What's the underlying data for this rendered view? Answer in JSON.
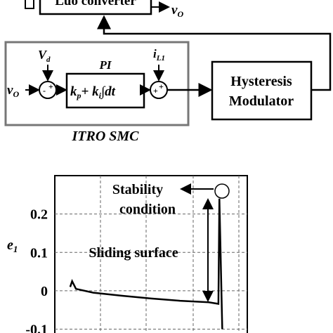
{
  "diagram": {
    "converter": "Luo converter",
    "output": {
      "symbol": "v",
      "sub": "O"
    },
    "input": {
      "symbol": "v",
      "sub": "O"
    },
    "reference": {
      "symbol": "V",
      "sub": "d"
    },
    "current": {
      "symbol": "i",
      "sub": "L1"
    },
    "pi_label": "PI",
    "pi_formula": {
      "kp": "k",
      "kp_sub": "p",
      "plus": "+ ",
      "ki": "k",
      "ki_sub": "i",
      "integral": "∫dt"
    },
    "sum1_signs": [
      "-",
      "+"
    ],
    "sum2_signs": [
      "+",
      "+"
    ],
    "modulator": [
      "Hysteresis",
      "Modulator"
    ],
    "controller_label": "ITRO SMC"
  },
  "chart_data": {
    "type": "line",
    "ylabel": {
      "symbol": "e",
      "sub": "1"
    },
    "annotations": [
      "Stability",
      "condition",
      "Sliding surface"
    ],
    "x": [
      0.08,
      0.09,
      0.11,
      0.2,
      0.35,
      0.5,
      0.65,
      0.8,
      0.85,
      0.855,
      0.87
    ],
    "values": [
      0.01,
      0.025,
      0.005,
      -0.005,
      -0.013,
      -0.02,
      -0.026,
      -0.03,
      -0.034,
      0.24,
      -0.1
    ],
    "color": "#000000",
    "xlim": [
      0,
      1
    ],
    "ylim": [
      -0.11,
      0.3
    ],
    "yticks": [
      -0.1,
      0,
      0.1,
      0.2
    ],
    "grid": true
  }
}
